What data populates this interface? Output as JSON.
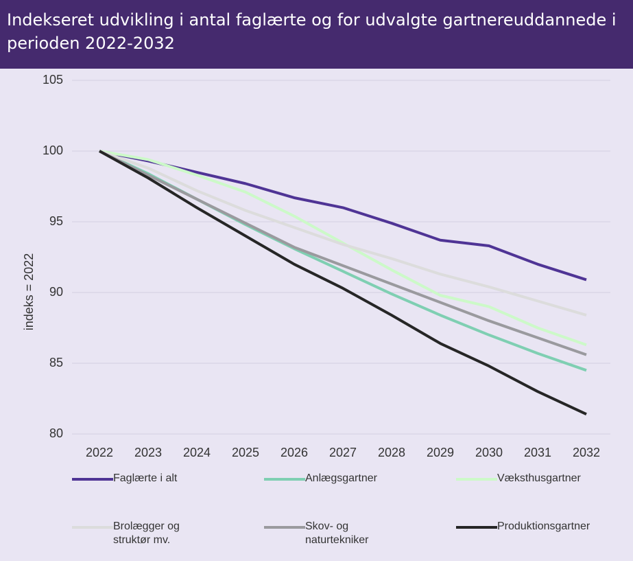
{
  "chart_data": {
    "type": "line",
    "title": "Indekseret udvikling i antal faglærte og for udvalgte gartnereuddannede i perioden 2022-2032",
    "ylabel": "indeks = 2022",
    "categories": [
      "2022",
      "2023",
      "2024",
      "2025",
      "2026",
      "2027",
      "2028",
      "2029",
      "2030",
      "2031",
      "2032"
    ],
    "ylim": [
      80,
      105
    ],
    "yticks": [
      80,
      85,
      90,
      95,
      100,
      105
    ],
    "grid": true,
    "series": [
      {
        "name": "Faglærte i alt",
        "color": "#4f3495",
        "values": [
          100,
          99.3,
          98.5,
          97.7,
          96.7,
          96.0,
          94.9,
          93.7,
          93.3,
          92.0,
          90.9
        ]
      },
      {
        "name": "Anlægsgartner",
        "color": "#7fcfb2",
        "values": [
          100,
          98.4,
          96.6,
          94.8,
          93.1,
          91.5,
          89.9,
          88.4,
          87.0,
          85.7,
          84.5
        ]
      },
      {
        "name": "Væksthusgartner",
        "color": "#ccf9c8",
        "values": [
          100,
          99.4,
          98.3,
          97.1,
          95.4,
          93.5,
          91.6,
          89.8,
          89.0,
          87.5,
          86.3
        ]
      },
      {
        "name": "Brolægger og struktør mv.",
        "color": "#dcdcdc",
        "values": [
          100,
          98.8,
          97.2,
          95.8,
          94.6,
          93.4,
          92.4,
          91.3,
          90.4,
          89.4,
          88.4
        ]
      },
      {
        "name": "Skov- og naturtekniker",
        "color": "#9a9a9e",
        "values": [
          100,
          98.3,
          96.6,
          94.9,
          93.2,
          91.9,
          90.6,
          89.3,
          88.0,
          86.8,
          85.6
        ]
      },
      {
        "name": "Produktionsgartner",
        "color": "#262626",
        "values": [
          100,
          98.1,
          96.0,
          94.0,
          92.0,
          90.3,
          88.4,
          86.4,
          84.8,
          83.0,
          81.4
        ]
      }
    ]
  }
}
